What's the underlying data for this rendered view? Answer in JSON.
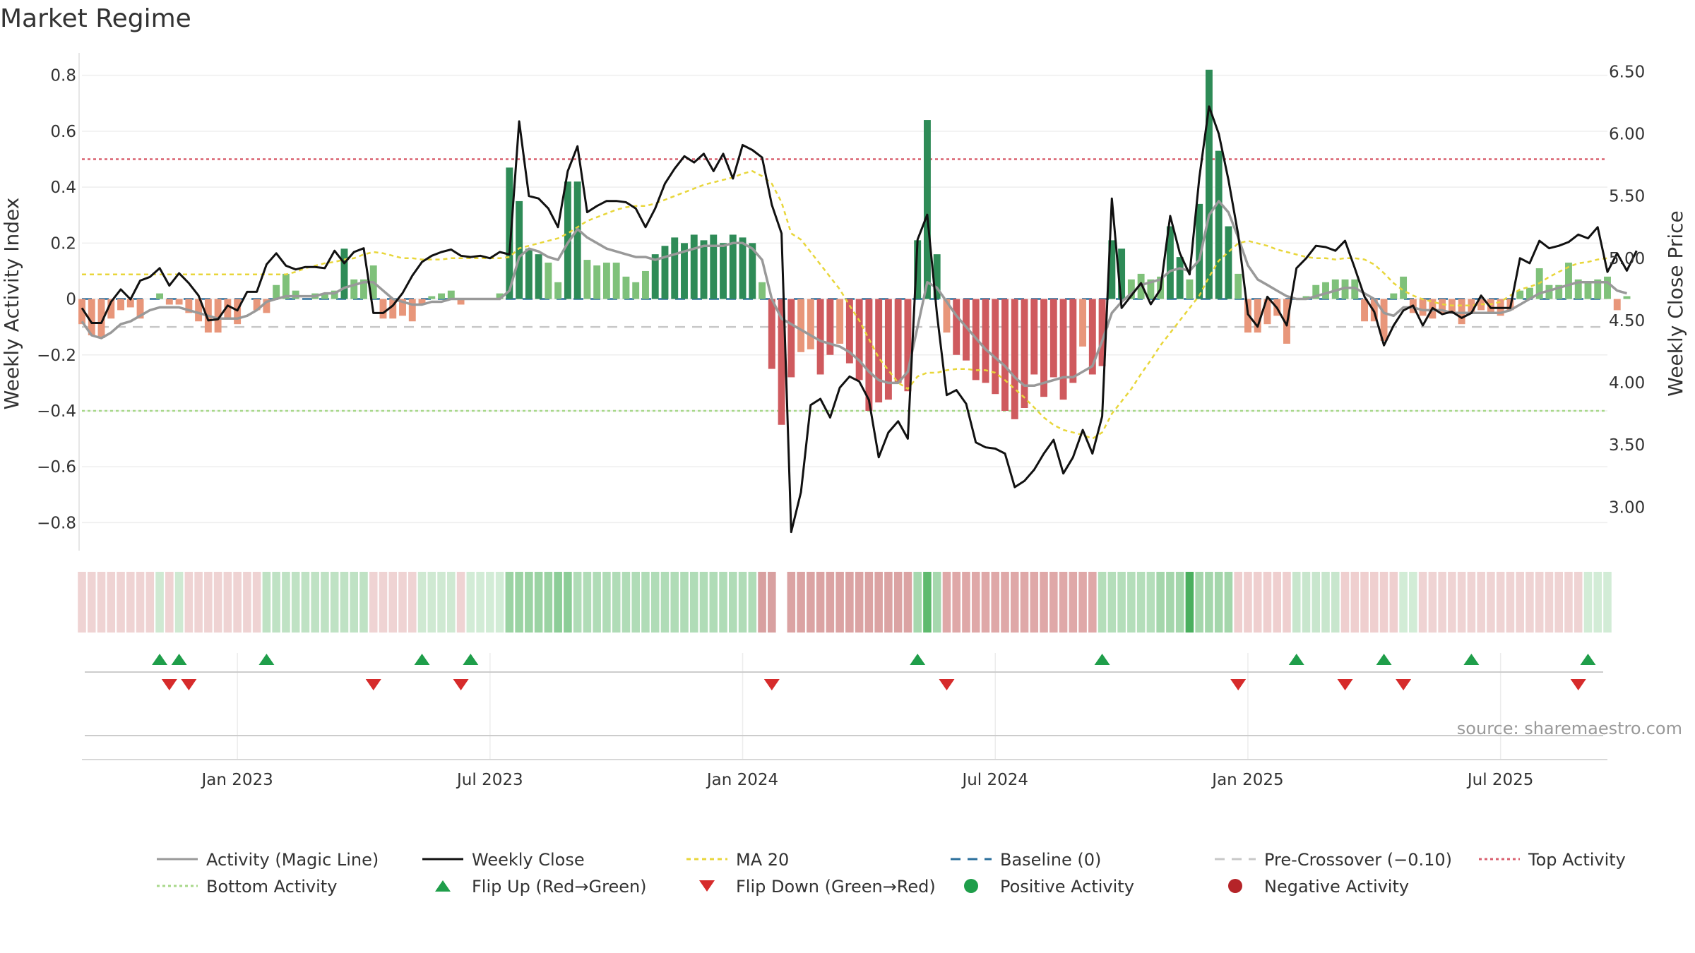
{
  "chart_data": {
    "type": "bar",
    "title": "Market Regime",
    "ylabel": "Weekly Activity Index",
    "y2label": "Weekly Close Price",
    "ylim": [
      -0.9,
      0.88
    ],
    "y2lim": [
      2.65,
      6.65
    ],
    "y_ticks": [
      0.8,
      0.6,
      0.4,
      0.2,
      0,
      -0.2,
      -0.4,
      -0.6,
      -0.8
    ],
    "y_tick_labels": [
      "0.8",
      "0.6",
      "0.4",
      "0.2",
      "0",
      "−0.2",
      "−0.4",
      "−0.6",
      "−0.8"
    ],
    "y2_ticks": [
      6.5,
      6.0,
      5.5,
      5.0,
      4.5,
      4.0,
      3.5,
      3.0
    ],
    "y2_tick_labels": [
      "6.50",
      "6.00",
      "5.50",
      "5.00",
      "4.50",
      "4.00",
      "3.50",
      "3.00"
    ],
    "x_tick_weeks": [
      16,
      42,
      68,
      94,
      120,
      146
    ],
    "x_tick_labels": [
      "Jan 2023",
      "Jul 2023",
      "Jan 2024",
      "Jul 2024",
      "Jan 2025",
      "Jul 2025"
    ],
    "week_count": 158,
    "reference_lines": {
      "top_activity": 0.5,
      "bottom_activity": -0.4,
      "pre_crossover": -0.1,
      "baseline": 0
    },
    "source": "source: sharemaestro.com",
    "legend": [
      {
        "label": "Activity (Magic Line)",
        "kind": "line",
        "color": "#999999",
        "dash": ""
      },
      {
        "label": "Weekly Close",
        "kind": "line",
        "color": "#111111",
        "dash": ""
      },
      {
        "label": "MA 20",
        "kind": "line",
        "color": "#e8d63a",
        "dash": "6,5"
      },
      {
        "label": "Baseline (0)",
        "kind": "line",
        "color": "#2b6f9c",
        "dash": "14,10"
      },
      {
        "label": "Pre-Crossover (−0.10)",
        "kind": "line",
        "color": "#c8c8c8",
        "dash": "14,10"
      },
      {
        "label": "Top Activity",
        "kind": "line",
        "color": "#d9606f",
        "dash": "4,4"
      },
      {
        "label": "Bottom Activity",
        "kind": "line",
        "color": "#a8d88a",
        "dash": "4,4"
      },
      {
        "label": "Flip Up (Red→Green)",
        "kind": "tri-up",
        "color": "#1f9e4a",
        "dash": ""
      },
      {
        "label": "Flip Down (Green→Red)",
        "kind": "tri-down",
        "color": "#d62b2b",
        "dash": ""
      },
      {
        "label": "Positive Activity",
        "kind": "dot",
        "color": "#1f9e4a",
        "dash": ""
      },
      {
        "label": "Negative Activity",
        "kind": "dot",
        "color": "#b52428",
        "dash": ""
      }
    ],
    "colors": {
      "strong_green": "#2e8b57",
      "light_green": "#7fc17a",
      "strong_red": "#cf5a5e",
      "light_red": "#e8967a",
      "activity": "#999999",
      "close": "#111111",
      "ma": "#e8d63a",
      "baseline": "#2b6f9c",
      "pre": "#c8c8c8",
      "top": "#d9606f",
      "bottom": "#a8d88a",
      "flip_up": "#1f9e4a",
      "flip_down": "#d62b2b"
    },
    "flip_up_weeks": [
      8,
      10,
      19,
      35,
      40,
      86,
      105,
      125,
      134,
      143,
      155
    ],
    "flip_down_weeks": [
      9,
      11,
      30,
      39,
      71,
      89,
      119,
      130,
      136,
      154
    ],
    "regime_band": [
      {
        "from": 0,
        "to": 7,
        "color": "#efd3d3"
      },
      {
        "from": 8,
        "to": 8,
        "color": "#cfe9d2"
      },
      {
        "from": 9,
        "to": 9,
        "color": "#efd3d3"
      },
      {
        "from": 10,
        "to": 10,
        "color": "#cfe9d2"
      },
      {
        "from": 11,
        "to": 18,
        "color": "#efd3d3"
      },
      {
        "from": 19,
        "to": 29,
        "color": "#bfe2c4"
      },
      {
        "from": 30,
        "to": 34,
        "color": "#efd3d3"
      },
      {
        "from": 35,
        "to": 38,
        "color": "#cfe9d2"
      },
      {
        "from": 39,
        "to": 39,
        "color": "#efd3d3"
      },
      {
        "from": 40,
        "to": 43,
        "color": "#d2ecd6"
      },
      {
        "from": 44,
        "to": 48,
        "color": "#9bd3a3"
      },
      {
        "from": 49,
        "to": 50,
        "color": "#8ccd97"
      },
      {
        "from": 51,
        "to": 69,
        "color": "#b0dcb7"
      },
      {
        "from": 70,
        "to": 71,
        "color": "#d8a0a0"
      },
      {
        "from": 73,
        "to": 85,
        "color": "#dba3a3"
      },
      {
        "from": 86,
        "to": 86,
        "color": "#a6d8ae"
      },
      {
        "from": 87,
        "to": 87,
        "color": "#5fba6e"
      },
      {
        "from": 88,
        "to": 88,
        "color": "#a6d8ae"
      },
      {
        "from": 89,
        "to": 104,
        "color": "#dfa8a8"
      },
      {
        "from": 105,
        "to": 110,
        "color": "#b4deba"
      },
      {
        "from": 111,
        "to": 113,
        "color": "#a4d6ab"
      },
      {
        "from": 114,
        "to": 114,
        "color": "#4aaf5e"
      },
      {
        "from": 115,
        "to": 118,
        "color": "#a4d6ab"
      },
      {
        "from": 119,
        "to": 124,
        "color": "#efcfcf"
      },
      {
        "from": 125,
        "to": 129,
        "color": "#c8e6cd"
      },
      {
        "from": 130,
        "to": 135,
        "color": "#efcfcf"
      },
      {
        "from": 136,
        "to": 137,
        "color": "#d2ecd6"
      },
      {
        "from": 138,
        "to": 153,
        "color": "#efd3d3"
      },
      {
        "from": 154,
        "to": 154,
        "color": "#efd3d3"
      },
      {
        "from": 155,
        "to": 157,
        "color": "#d2ecd6"
      }
    ],
    "series": [
      {
        "name": "Weekly Activity (bars)",
        "values": [
          -0.09,
          -0.13,
          -0.14,
          -0.07,
          -0.04,
          -0.03,
          -0.07,
          0,
          0.02,
          -0.02,
          -0.02,
          -0.05,
          -0.08,
          -0.12,
          -0.12,
          -0.07,
          -0.09,
          0,
          -0.04,
          -0.05,
          0.05,
          0.09,
          0.03,
          0,
          0.02,
          0.02,
          0.03,
          0.18,
          0.07,
          0.07,
          0.12,
          -0.07,
          -0.07,
          -0.06,
          -0.08,
          -0.02,
          0.01,
          0.02,
          0.03,
          -0.02,
          0,
          0,
          0,
          0.02,
          0.47,
          0.35,
          0.18,
          0.16,
          0.13,
          0.06,
          0.42,
          0.42,
          0.14,
          0.12,
          0.13,
          0.13,
          0.08,
          0.06,
          0.1,
          0.16,
          0.19,
          0.22,
          0.2,
          0.23,
          0.21,
          0.23,
          0.2,
          0.23,
          0.22,
          0.2,
          0.06,
          -0.25,
          -0.45,
          -0.28,
          -0.19,
          -0.18,
          -0.27,
          -0.2,
          -0.16,
          -0.23,
          -0.29,
          -0.4,
          -0.37,
          -0.36,
          -0.3,
          -0.33,
          0.21,
          0.64,
          0.16,
          -0.12,
          -0.2,
          -0.22,
          -0.29,
          -0.3,
          -0.34,
          -0.4,
          -0.43,
          -0.39,
          -0.27,
          -0.35,
          -0.28,
          -0.36,
          -0.3,
          -0.17,
          -0.27,
          -0.24,
          0.21,
          0.18,
          0.07,
          0.09,
          0.07,
          0.08,
          0.26,
          0.15,
          0.07,
          0.34,
          0.82,
          0.53,
          0.26,
          0.09,
          -0.12,
          -0.12,
          -0.09,
          -0.06,
          -0.16,
          0,
          0.01,
          0.05,
          0.06,
          0.07,
          0.07,
          0.07,
          -0.08,
          -0.08,
          -0.15,
          0.02,
          0.08,
          -0.05,
          -0.06,
          -0.07,
          -0.05,
          -0.05,
          -0.09,
          -0.05,
          -0.04,
          -0.05,
          -0.06,
          -0.04,
          0.03,
          0.04,
          0.11,
          0.05,
          0.05,
          0.13,
          0.07,
          0.06,
          0.07,
          0.08,
          -0.04,
          0.01
        ]
      },
      {
        "name": "Activity (Magic Line)",
        "values": [
          -0.08,
          -0.13,
          -0.14,
          -0.12,
          -0.09,
          -0.08,
          -0.06,
          -0.04,
          -0.03,
          -0.03,
          -0.03,
          -0.04,
          -0.05,
          -0.06,
          -0.07,
          -0.07,
          -0.07,
          -0.06,
          -0.04,
          -0.01,
          0,
          0.01,
          0.01,
          0.01,
          0.01,
          0.02,
          0.02,
          0.04,
          0.05,
          0.06,
          0.06,
          0.03,
          0,
          -0.01,
          -0.02,
          -0.02,
          -0.01,
          -0.01,
          0,
          0,
          0,
          0,
          0,
          0,
          0.03,
          0.15,
          0.18,
          0.17,
          0.15,
          0.14,
          0.2,
          0.25,
          0.22,
          0.2,
          0.18,
          0.17,
          0.16,
          0.15,
          0.15,
          0.14,
          0.15,
          0.16,
          0.17,
          0.18,
          0.19,
          0.19,
          0.19,
          0.2,
          0.2,
          0.18,
          0.14,
          0,
          -0.07,
          -0.09,
          -0.11,
          -0.13,
          -0.15,
          -0.16,
          -0.17,
          -0.19,
          -0.22,
          -0.26,
          -0.29,
          -0.3,
          -0.3,
          -0.26,
          -0.1,
          0.06,
          0.04,
          -0.01,
          -0.06,
          -0.1,
          -0.14,
          -0.18,
          -0.21,
          -0.24,
          -0.28,
          -0.31,
          -0.31,
          -0.3,
          -0.29,
          -0.28,
          -0.28,
          -0.26,
          -0.24,
          -0.15,
          -0.05,
          -0.01,
          0.02,
          0.05,
          0.06,
          0.07,
          0.1,
          0.11,
          0.1,
          0.14,
          0.3,
          0.35,
          0.31,
          0.22,
          0.12,
          0.07,
          0.05,
          0.03,
          0.01,
          0,
          0,
          0.01,
          0.02,
          0.03,
          0.04,
          0.04,
          0.02,
          0,
          -0.05,
          -0.06,
          -0.03,
          -0.03,
          -0.04,
          -0.04,
          -0.04,
          -0.05,
          -0.05,
          -0.05,
          -0.05,
          -0.05,
          -0.05,
          -0.04,
          -0.02,
          0,
          0.02,
          0.03,
          0.04,
          0.05,
          0.06,
          0.06,
          0.06,
          0.06,
          0.03,
          0.02
        ]
      },
      {
        "name": "Weekly Close",
        "values": [
          4.6,
          4.48,
          4.48,
          4.65,
          4.75,
          4.67,
          4.82,
          4.85,
          4.92,
          4.78,
          4.88,
          4.8,
          4.7,
          4.5,
          4.51,
          4.62,
          4.58,
          4.73,
          4.73,
          4.95,
          5.04,
          4.94,
          4.91,
          4.93,
          4.93,
          4.92,
          5.06,
          4.96,
          5.05,
          5.08,
          4.56,
          4.56,
          4.62,
          4.72,
          4.86,
          4.97,
          5.02,
          5.05,
          5.07,
          5.02,
          5.01,
          5.02,
          5.0,
          5.05,
          5.03,
          6.1,
          5.5,
          5.48,
          5.4,
          5.25,
          5.7,
          5.9,
          5.37,
          5.42,
          5.46,
          5.46,
          5.45,
          5.4,
          5.25,
          5.4,
          5.6,
          5.72,
          5.82,
          5.77,
          5.84,
          5.7,
          5.84,
          5.64,
          5.91,
          5.87,
          5.81,
          5.43,
          5.2,
          2.8,
          3.12,
          3.82,
          3.87,
          3.72,
          3.96,
          4.05,
          4.01,
          3.86,
          3.4,
          3.6,
          3.69,
          3.55,
          5.15,
          5.35,
          4.55,
          3.9,
          3.94,
          3.83,
          3.52,
          3.48,
          3.47,
          3.43,
          3.16,
          3.21,
          3.3,
          3.43,
          3.54,
          3.27,
          3.4,
          3.62,
          3.43,
          3.73,
          5.48,
          4.6,
          4.7,
          4.8,
          4.63,
          4.75,
          5.34,
          5.04,
          4.87,
          5.65,
          6.22,
          6.0,
          5.63,
          5.19,
          4.55,
          4.45,
          4.69,
          4.6,
          4.46,
          4.92,
          5.0,
          5.1,
          5.09,
          5.06,
          5.14,
          4.92,
          4.69,
          4.57,
          4.3,
          4.46,
          4.58,
          4.62,
          4.46,
          4.6,
          4.55,
          4.57,
          4.52,
          4.56,
          4.7,
          4.6,
          4.6,
          4.6,
          5.0,
          4.96,
          5.14,
          5.08,
          5.1,
          5.13,
          5.19,
          5.16,
          5.25,
          4.89,
          5.04,
          4.9,
          5.06
        ]
      },
      {
        "name": "MA 20",
        "values": [
          4.87,
          4.87,
          4.87,
          4.87,
          4.87,
          4.87,
          4.87,
          4.87,
          4.87,
          4.87,
          4.87,
          4.87,
          4.87,
          4.87,
          4.87,
          4.87,
          4.87,
          4.87,
          4.87,
          4.87,
          4.87,
          4.87,
          4.89,
          4.92,
          4.94,
          4.96,
          4.97,
          4.99,
          5.0,
          5.03,
          5.05,
          5.04,
          5.02,
          5.0,
          5.0,
          4.99,
          4.99,
          4.99,
          5.0,
          5.0,
          5.0,
          5.0,
          5.0,
          5.0,
          5.01,
          5.08,
          5.1,
          5.12,
          5.14,
          5.16,
          5.2,
          5.25,
          5.3,
          5.33,
          5.36,
          5.39,
          5.41,
          5.42,
          5.42,
          5.44,
          5.47,
          5.5,
          5.53,
          5.56,
          5.59,
          5.61,
          5.63,
          5.65,
          5.68,
          5.7,
          5.66,
          5.6,
          5.45,
          5.2,
          5.15,
          5.05,
          4.95,
          4.85,
          4.75,
          4.62,
          4.5,
          4.35,
          4.2,
          4.1,
          4.0,
          3.95,
          4.05,
          4.08,
          4.08,
          4.1,
          4.11,
          4.11,
          4.1,
          4.1,
          4.08,
          4.02,
          3.95,
          3.88,
          3.8,
          3.72,
          3.66,
          3.62,
          3.6,
          3.58,
          3.55,
          3.6,
          3.75,
          3.85,
          3.95,
          4.07,
          4.18,
          4.3,
          4.4,
          4.5,
          4.6,
          4.7,
          4.85,
          4.98,
          5.05,
          5.12,
          5.14,
          5.12,
          5.1,
          5.07,
          5.05,
          5.03,
          5.01,
          5.0,
          5.0,
          4.99,
          5.0,
          5.0,
          4.99,
          4.95,
          4.88,
          4.8,
          4.74,
          4.7,
          4.67,
          4.65,
          4.63,
          4.62,
          4.62,
          4.62,
          4.63,
          4.63,
          4.65,
          4.7,
          4.75,
          4.77,
          4.8,
          4.85,
          4.89,
          4.93,
          4.96,
          4.97,
          4.99,
          5.0
        ]
      }
    ]
  }
}
